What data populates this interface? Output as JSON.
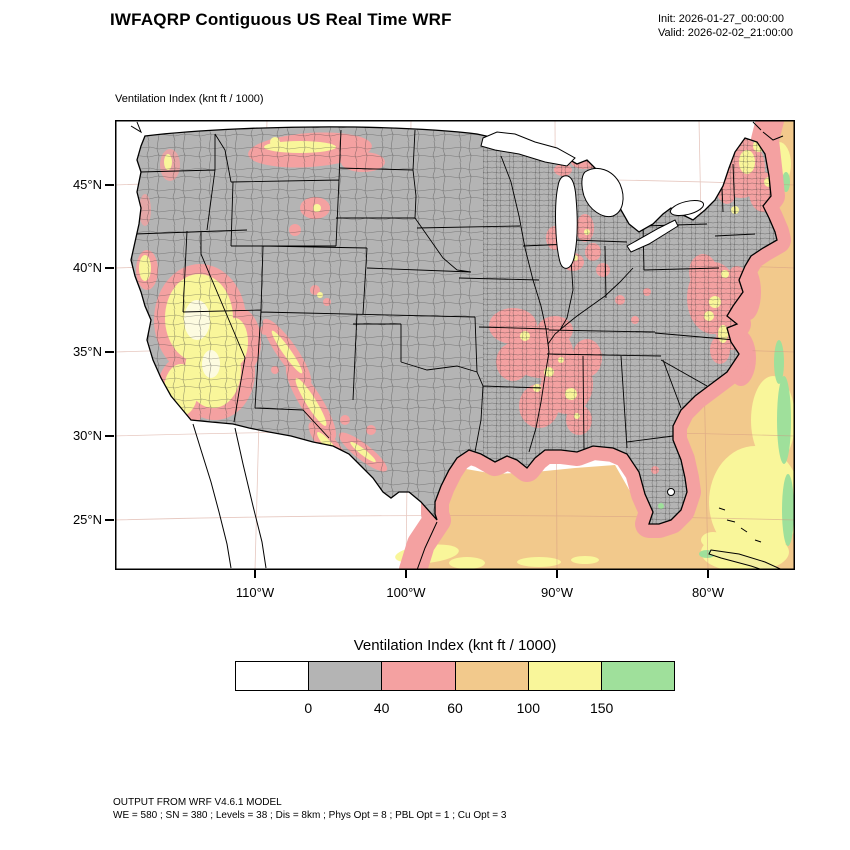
{
  "header": {
    "title": "IWFAQRP Contiguous US Real Time WRF",
    "init_line": "Init: 2026-01-27_00:00:00",
    "valid_line": "Valid: 2026-02-02_21:00:00"
  },
  "map": {
    "field_label": "Ventilation Index   (knt ft / 1000)",
    "lat_labels": [
      "45°N",
      "40°N",
      "35°N",
      "30°N",
      "25°N"
    ],
    "lon_labels": [
      "110°W",
      "100°W",
      "90°W",
      "80°W"
    ]
  },
  "legend": {
    "title": "Ventilation Index  (knt ft / 1000)",
    "colors": [
      "#ffffff",
      "#b4b4b4",
      "#f4a1a1",
      "#f2c98c",
      "#f9f69a",
      "#9fe09b"
    ],
    "breaks": [
      "0",
      "40",
      "60",
      "100",
      "150"
    ]
  },
  "footer": {
    "line1": "OUTPUT FROM WRF V4.6.1 MODEL",
    "line2": "WE = 580 ; SN = 380 ; Levels = 38 ; Dis = 8km ; Phys Opt = 8 ; PBL Opt = 1 ; Cu Opt = 3"
  },
  "chart_data": {
    "type": "heatmap",
    "title": "Ventilation Index",
    "units": "knt ft / 1000",
    "model": "WRF V4.6.1",
    "model_init": "2026-01-27_00:00:00",
    "model_valid": "2026-02-02_21:00:00",
    "colorbar": {
      "bin_colors": [
        "#ffffff",
        "#b4b4b4",
        "#f4a1a1",
        "#f2c98c",
        "#f9f69a",
        "#9fe09b"
      ],
      "bin_edges": [
        0,
        40,
        60,
        100,
        150
      ]
    },
    "lat_ticks_deg_n": [
      45,
      40,
      35,
      30,
      25
    ],
    "lon_ticks_deg_w": [
      110,
      100,
      90,
      80
    ],
    "grid_info": "WE = 580 ; SN = 380 ; Levels = 38 ; Dis = 8km ; Phys Opt = 8 ; PBL Opt = 1 ; Cu Opt = 3"
  }
}
